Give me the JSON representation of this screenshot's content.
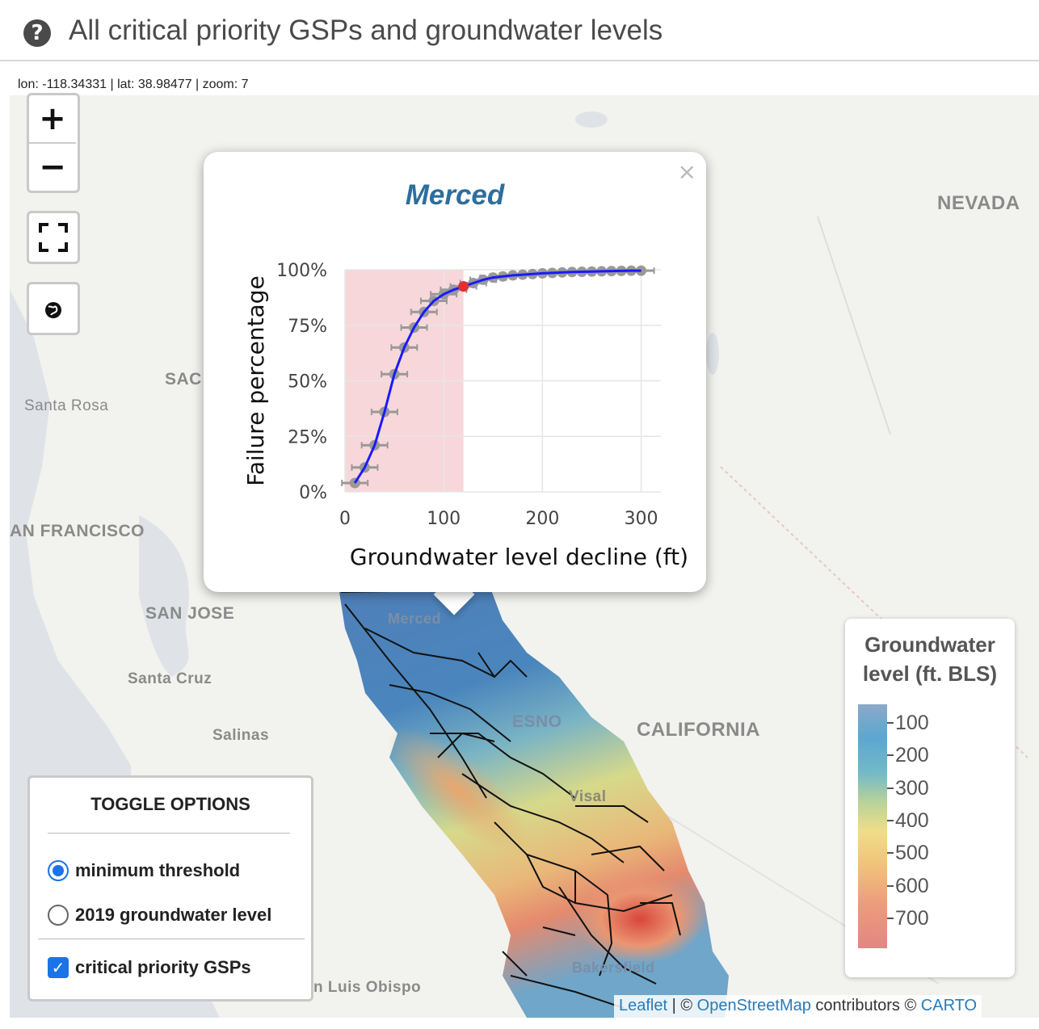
{
  "header": {
    "title": "All critical priority GSPs and groundwater levels",
    "help_icon": "question-circle-icon"
  },
  "coords": "lon: -118.34331 | lat: 38.98477 | zoom: 7",
  "controls": {
    "zoom_in": "+",
    "zoom_out": "−",
    "fullscreen_icon": "fullscreen-icon",
    "globe_icon": "globe-icon"
  },
  "map_labels": {
    "nevada": "NEVADA",
    "california": "CALIFORNIA",
    "sac": "SAC",
    "santa_rosa": "Santa Rosa",
    "san_francisco": "AN FRANCISCO",
    "san_jose": "SAN JOSE",
    "santa_cruz": "Santa Cruz",
    "salinas": "Salinas",
    "san_luis_obispo": "n Luis Obispo",
    "merced": "Merced",
    "fresno": "ESNO",
    "visalia": "Visal",
    "bakersfield": "Bakersfield"
  },
  "popup": {
    "title": "Merced",
    "close": "×"
  },
  "chart_data": {
    "type": "scatter",
    "title": "",
    "xlabel": "Groundwater level decline (ft)",
    "ylabel": "Failure percentage",
    "xlim": [
      0,
      320
    ],
    "ylim": [
      0,
      1
    ],
    "x_ticks": [
      0,
      100,
      200,
      300
    ],
    "x_tick_labels": [
      "0",
      "100",
      "200",
      "300"
    ],
    "y_ticks": [
      0,
      0.25,
      0.5,
      0.75,
      1.0
    ],
    "y_tick_labels": [
      "0%",
      "25%",
      "50%",
      "75%",
      "100%"
    ],
    "shaded_region": {
      "x": [
        0,
        120
      ],
      "color": "#f8d7da"
    },
    "highlight_point": {
      "x": 120,
      "y": 0.925,
      "color": "#e03030"
    },
    "fit_color": "#1a1aff",
    "point_color": "#999999",
    "series": [
      {
        "x": [
          10,
          20,
          30,
          40,
          50,
          60,
          70,
          80,
          90,
          100,
          110,
          120,
          130,
          140,
          150,
          160,
          170,
          180,
          190,
          200,
          210,
          220,
          230,
          240,
          250,
          260,
          270,
          280,
          290,
          300
        ],
        "y": [
          0.04,
          0.11,
          0.21,
          0.36,
          0.53,
          0.65,
          0.74,
          0.81,
          0.86,
          0.89,
          0.91,
          0.925,
          0.94,
          0.955,
          0.965,
          0.97,
          0.975,
          0.978,
          0.981,
          0.984,
          0.986,
          0.988,
          0.99,
          0.991,
          0.992,
          0.993,
          0.994,
          0.995,
          0.996,
          0.996
        ]
      }
    ]
  },
  "legend": {
    "title": "Groundwater level (ft. BLS)",
    "ticks": [
      "100",
      "200",
      "300",
      "400",
      "500",
      "600",
      "700"
    ]
  },
  "toggle": {
    "title": "TOGGLE OPTIONS",
    "option1": "minimum threshold",
    "option2": "2019 groundwater level",
    "option3": "critical priority GSPs"
  },
  "attribution": {
    "leaflet": "Leaflet",
    "sep": " | © ",
    "osm": "OpenStreetMap",
    "contributors": " contributors © ",
    "carto": "CARTO"
  }
}
